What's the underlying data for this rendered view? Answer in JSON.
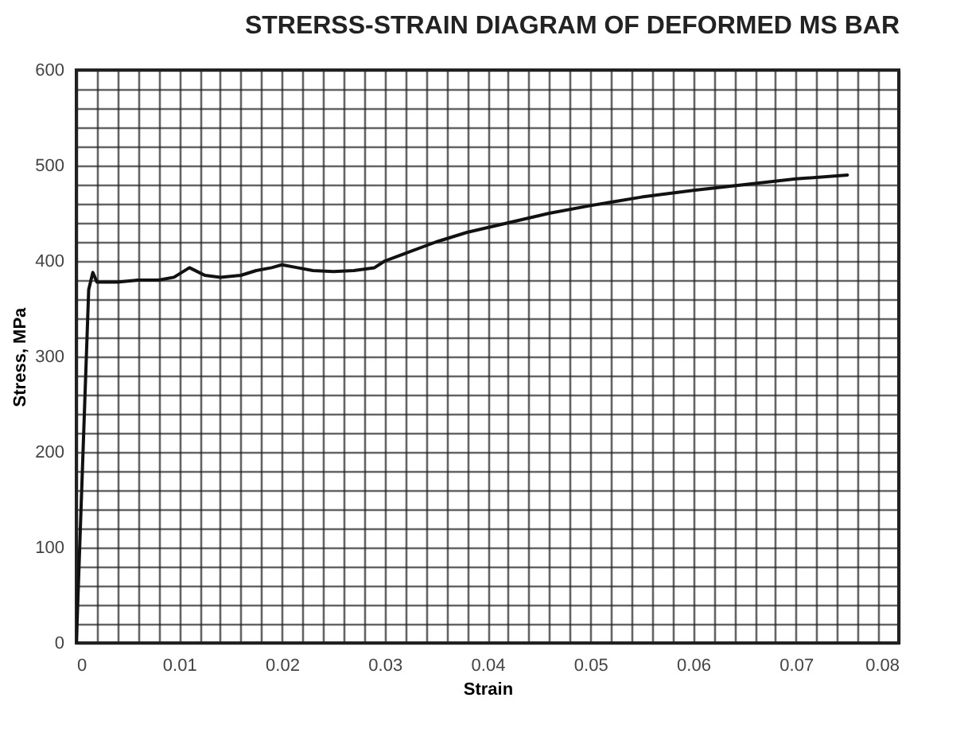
{
  "chart_data": {
    "type": "line",
    "title": "STRERSS-STRAIN DIAGRAM OF DEFORMED MS BAR",
    "xlabel": "Strain",
    "ylabel": "Stress, MPa",
    "x": [
      0,
      0.0012,
      0.0016,
      0.002,
      0.004,
      0.006,
      0.008,
      0.0095,
      0.011,
      0.0125,
      0.014,
      0.016,
      0.0175,
      0.019,
      0.02,
      0.0215,
      0.023,
      0.025,
      0.027,
      0.029,
      0.03,
      0.032,
      0.035,
      0.038,
      0.042,
      0.046,
      0.05,
      0.055,
      0.06,
      0.065,
      0.07,
      0.075
    ],
    "series": [
      {
        "color": "#111111",
        "values": [
          0,
          370,
          388,
          378,
          378,
          380,
          380,
          383,
          393,
          385,
          383,
          385,
          390,
          393,
          396,
          393,
          390,
          389,
          390,
          393,
          400,
          408,
          420,
          430,
          440,
          450,
          458,
          467,
          474,
          480,
          486,
          490
        ]
      }
    ],
    "xlim": [
      0,
      0.08
    ],
    "ylim": [
      0,
      600
    ],
    "xticks": [
      0,
      {
        "value": 0.002,
        "label": null
      },
      {
        "value": 0.004,
        "label": null
      },
      {
        "value": 0.006,
        "label": null
      },
      {
        "value": 0.008,
        "label": null
      },
      0.01,
      {
        "value": 0.012,
        "label": null
      },
      {
        "value": 0.014,
        "label": null
      },
      {
        "value": 0.016,
        "label": null
      },
      {
        "value": 0.018,
        "label": null
      },
      0.02,
      {
        "value": 0.022,
        "label": null
      },
      {
        "value": 0.024,
        "label": null
      },
      {
        "value": 0.026,
        "label": null
      },
      {
        "value": 0.028,
        "label": null
      },
      0.03,
      {
        "value": 0.032,
        "label": null
      },
      {
        "value": 0.034,
        "label": null
      },
      {
        "value": 0.036,
        "label": null
      },
      {
        "value": 0.038,
        "label": null
      },
      0.04,
      {
        "value": 0.042,
        "label": null
      },
      {
        "value": 0.044,
        "label": null
      },
      {
        "value": 0.046,
        "label": null
      },
      {
        "value": 0.048,
        "label": null
      },
      0.05,
      {
        "value": 0.052,
        "label": null
      },
      {
        "value": 0.054,
        "label": null
      },
      {
        "value": 0.056,
        "label": null
      },
      {
        "value": 0.058,
        "label": null
      },
      0.06,
      {
        "value": 0.062,
        "label": null
      },
      {
        "value": 0.064,
        "label": null
      },
      {
        "value": 0.066,
        "label": null
      },
      {
        "value": 0.068,
        "label": null
      },
      0.07,
      {
        "value": 0.072,
        "label": null
      },
      {
        "value": 0.074,
        "label": null
      },
      {
        "value": 0.076,
        "label": null
      },
      {
        "value": 0.078,
        "label": null
      },
      0.08
    ],
    "yticks": [
      0,
      {
        "value": 20,
        "label": null
      },
      {
        "value": 40,
        "label": null
      },
      {
        "value": 60,
        "label": null
      },
      {
        "value": 80,
        "label": null
      },
      100,
      {
        "value": 120,
        "label": null
      },
      {
        "value": 140,
        "label": null
      },
      {
        "value": 160,
        "label": null
      },
      {
        "value": 180,
        "label": null
      },
      200,
      {
        "value": 220,
        "label": null
      },
      {
        "value": 240,
        "label": null
      },
      {
        "value": 260,
        "label": null
      },
      {
        "value": 280,
        "label": null
      },
      300,
      {
        "value": 320,
        "label": null
      },
      {
        "value": 340,
        "label": null
      },
      {
        "value": 360,
        "label": null
      },
      {
        "value": 380,
        "label": null
      },
      400,
      {
        "value": 420,
        "label": null
      },
      {
        "value": 440,
        "label": null
      },
      {
        "value": 460,
        "label": null
      },
      {
        "value": 480,
        "label": null
      },
      500,
      {
        "value": 520,
        "label": null
      },
      {
        "value": 540,
        "label": null
      },
      {
        "value": 560,
        "label": null
      },
      {
        "value": 580,
        "label": null
      },
      600
    ],
    "grid": true,
    "legend": false,
    "marker": "none",
    "line_style": "solid"
  }
}
